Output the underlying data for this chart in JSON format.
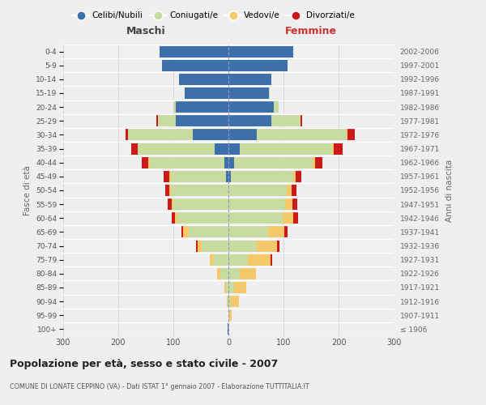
{
  "age_groups": [
    "100+",
    "95-99",
    "90-94",
    "85-89",
    "80-84",
    "75-79",
    "70-74",
    "65-69",
    "60-64",
    "55-59",
    "50-54",
    "45-49",
    "40-44",
    "35-39",
    "30-34",
    "25-29",
    "20-24",
    "15-19",
    "10-14",
    "5-9",
    "0-4"
  ],
  "birth_years": [
    "≤ 1906",
    "1907-1911",
    "1912-1916",
    "1917-1921",
    "1922-1926",
    "1927-1931",
    "1932-1936",
    "1937-1941",
    "1942-1946",
    "1947-1951",
    "1952-1956",
    "1957-1961",
    "1962-1966",
    "1967-1971",
    "1972-1976",
    "1977-1981",
    "1982-1986",
    "1987-1991",
    "1992-1996",
    "1997-2001",
    "2002-2006"
  ],
  "males_celibi": [
    1,
    0,
    0,
    0,
    0,
    0,
    0,
    0,
    0,
    0,
    0,
    5,
    8,
    25,
    65,
    95,
    95,
    80,
    90,
    120,
    125
  ],
  "males_coniugati": [
    0,
    0,
    2,
    5,
    15,
    28,
    48,
    72,
    92,
    100,
    105,
    100,
    135,
    140,
    118,
    33,
    5,
    0,
    0,
    0,
    0
  ],
  "males_vedovi": [
    0,
    0,
    1,
    3,
    6,
    6,
    8,
    10,
    5,
    3,
    2,
    2,
    2,
    0,
    0,
    0,
    0,
    0,
    0,
    0,
    0
  ],
  "males_divorziati": [
    0,
    0,
    0,
    0,
    0,
    0,
    3,
    3,
    6,
    8,
    8,
    10,
    12,
    12,
    4,
    3,
    0,
    0,
    0,
    0,
    0
  ],
  "females_nubili": [
    0,
    0,
    0,
    0,
    0,
    0,
    0,
    0,
    0,
    0,
    0,
    5,
    10,
    20,
    52,
    78,
    83,
    73,
    78,
    108,
    118
  ],
  "females_coniugate": [
    0,
    2,
    5,
    10,
    20,
    36,
    52,
    72,
    98,
    103,
    106,
    112,
    143,
    168,
    163,
    53,
    8,
    2,
    0,
    0,
    0
  ],
  "females_vedove": [
    0,
    4,
    14,
    22,
    30,
    40,
    36,
    30,
    20,
    13,
    8,
    5,
    5,
    3,
    1,
    0,
    0,
    0,
    0,
    0,
    0
  ],
  "females_divorziate": [
    0,
    0,
    0,
    0,
    0,
    3,
    4,
    5,
    8,
    9,
    9,
    10,
    13,
    16,
    13,
    3,
    0,
    0,
    0,
    0,
    0
  ],
  "color_celibi": "#3d6faa",
  "color_coniugati": "#c8dba0",
  "color_vedovi": "#f5c96a",
  "color_divorziati": "#cc1a1a",
  "xlim": 300,
  "title": "Popolazione per età, sesso e stato civile - 2007",
  "subtitle": "COMUNE DI LONATE CEPPINO (VA) - Dati ISTAT 1° gennaio 2007 - Elaborazione TUTTITALIA.IT",
  "ylabel_left": "Fasce di età",
  "ylabel_right": "Anni di nascita",
  "label_maschi": "Maschi",
  "label_femmine": "Femmine",
  "legend_labels": [
    "Celibi/Nubili",
    "Coniugati/e",
    "Vedovi/e",
    "Divorziati/e"
  ],
  "bg_color": "#efefef"
}
